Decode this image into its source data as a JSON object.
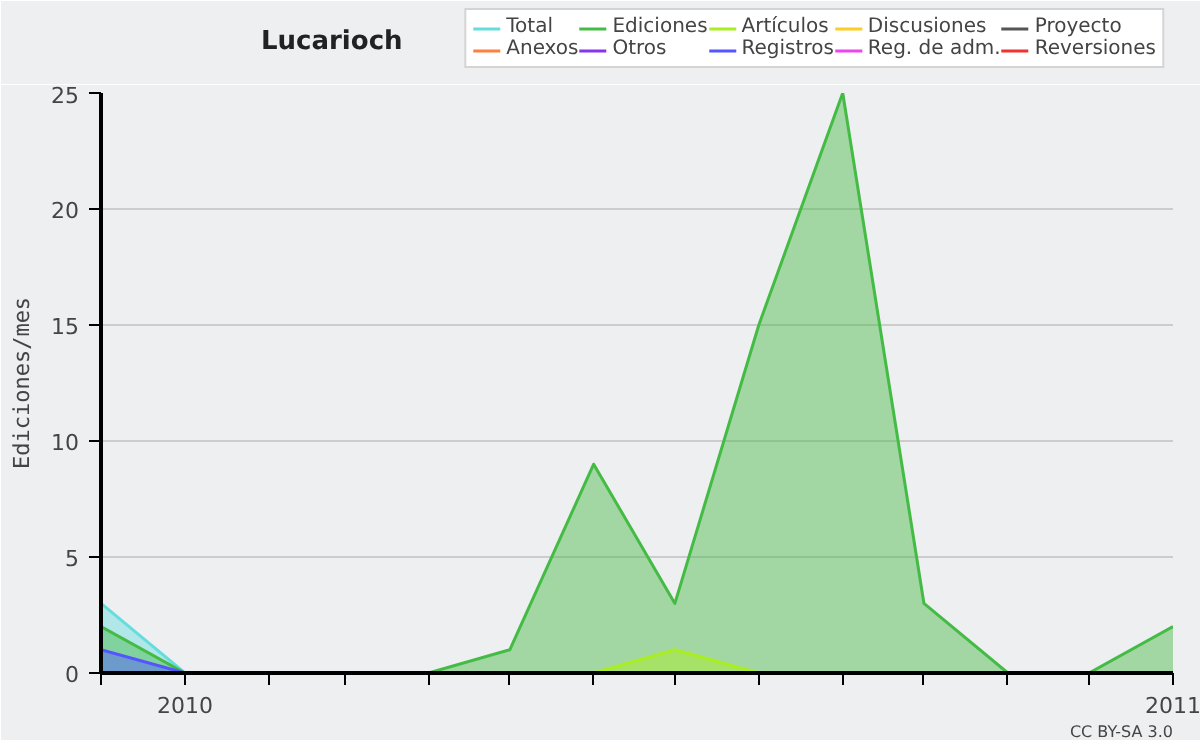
{
  "chart_data": {
    "type": "area",
    "title": "Lucarioch",
    "ylabel": "Ediciones/mes",
    "x": [
      "2009-12",
      "2010-01",
      "2010-02",
      "2010-03",
      "2010-04",
      "2010-05",
      "2010-06",
      "2010-07",
      "2010-08",
      "2010-09",
      "2010-10",
      "2010-11",
      "2010-12",
      "2011-01"
    ],
    "series": [
      {
        "name": "Total",
        "color": "#66dddd",
        "values": [
          3,
          0,
          null,
          null,
          null,
          null,
          null,
          null,
          null,
          null,
          null,
          null,
          null,
          null
        ]
      },
      {
        "name": "Ediciones",
        "color": "#44bb44",
        "values": [
          2,
          0,
          null,
          null,
          0,
          1,
          9,
          3,
          15,
          25,
          3,
          0,
          0,
          2
        ]
      },
      {
        "name": "Artículos",
        "color": "#aaee22",
        "values": [
          null,
          null,
          null,
          null,
          null,
          null,
          0,
          1,
          0,
          null,
          null,
          null,
          null,
          null
        ]
      },
      {
        "name": "Discusiones",
        "color": "#ffcc22",
        "values": [
          null,
          null,
          null,
          null,
          null,
          null,
          null,
          null,
          null,
          null,
          null,
          null,
          null,
          null
        ]
      },
      {
        "name": "Proyecto",
        "color": "#555555",
        "values": [
          null,
          null,
          null,
          null,
          null,
          null,
          null,
          null,
          null,
          null,
          null,
          null,
          null,
          null
        ]
      },
      {
        "name": "Anexos",
        "color": "#ff7f3f",
        "values": [
          null,
          null,
          null,
          null,
          null,
          null,
          null,
          null,
          null,
          null,
          null,
          null,
          null,
          null
        ]
      },
      {
        "name": "Otros",
        "color": "#8833ee",
        "values": [
          null,
          null,
          null,
          null,
          null,
          null,
          null,
          null,
          null,
          null,
          null,
          null,
          null,
          null
        ]
      },
      {
        "name": "Registros",
        "color": "#5555ff",
        "values": [
          1,
          0,
          null,
          null,
          null,
          null,
          null,
          null,
          null,
          null,
          null,
          null,
          null,
          null
        ]
      },
      {
        "name": "Reg. de adm.",
        "color": "#ee44ee",
        "values": [
          null,
          null,
          null,
          null,
          null,
          null,
          null,
          null,
          null,
          null,
          null,
          null,
          null,
          null
        ]
      },
      {
        "name": "Reversiones",
        "color": "#ee3333",
        "values": [
          null,
          null,
          null,
          null,
          null,
          null,
          null,
          null,
          null,
          null,
          null,
          null,
          null,
          null
        ]
      }
    ],
    "xlim": [
      "2009-12",
      "2011-01"
    ],
    "xticks": [
      {
        "value": "2009-12",
        "label": null
      },
      {
        "value": "2010-01",
        "label": "2010"
      },
      {
        "value": "2010-02",
        "label": null
      },
      {
        "value": "2010-03",
        "label": null
      },
      {
        "value": "2010-04",
        "label": null
      },
      {
        "value": "2010-05",
        "label": null
      },
      {
        "value": "2010-06",
        "label": null
      },
      {
        "value": "2010-07",
        "label": null
      },
      {
        "value": "2010-08",
        "label": null
      },
      {
        "value": "2010-09",
        "label": null
      },
      {
        "value": "2010-10",
        "label": null
      },
      {
        "value": "2010-11",
        "label": null
      },
      {
        "value": "2010-12",
        "label": null
      },
      {
        "value": "2011-01",
        "label": "2011"
      }
    ],
    "ylim": [
      0,
      25
    ],
    "yticks": [
      0,
      5,
      10,
      15,
      20,
      25
    ],
    "grid": "y",
    "legend": "top right",
    "annotations": [
      "CC BY-SA 3.0"
    ]
  }
}
